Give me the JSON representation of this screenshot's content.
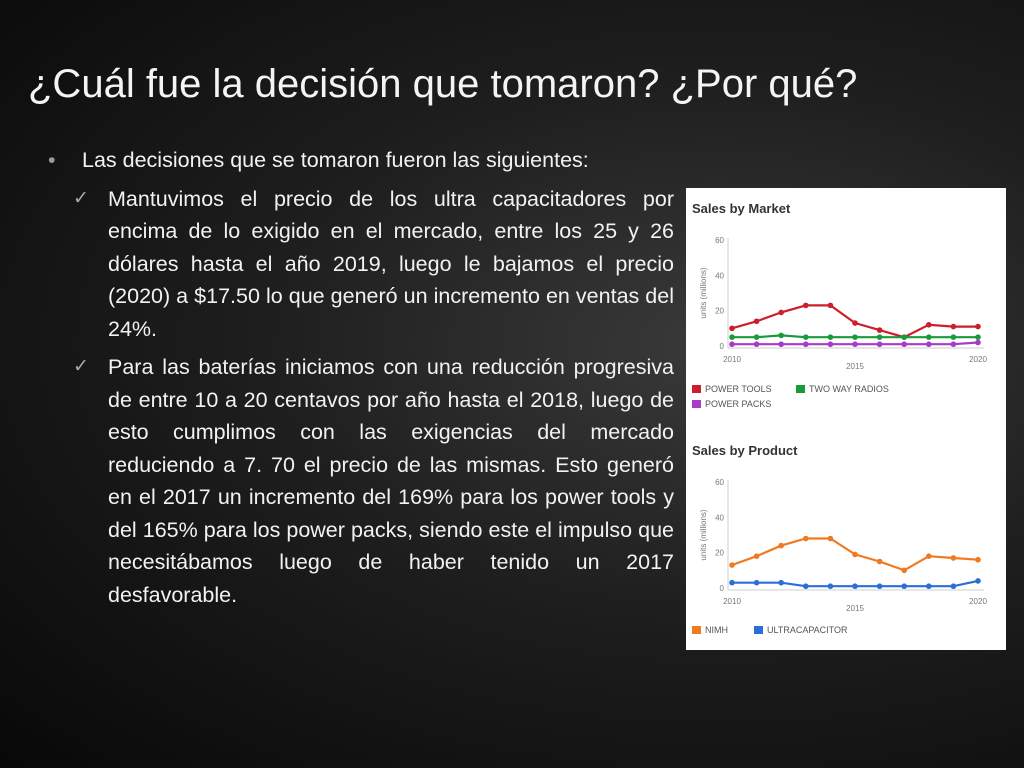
{
  "slide": {
    "title": "¿Cuál fue la decisión que tomaron? ¿Por qué?",
    "bullet": "Las decisiones que se tomaron fueron las siguientes:",
    "sub_bullets": [
      "Mantuvimos el precio de los ultra capacitadores por encima de lo exigido en el mercado, entre los 25 y 26 dólares hasta el año 2019, luego le bajamos el precio (2020) a $17.50 lo que generó un incremento en ventas del 24%.",
      "Para las baterías iniciamos con una reducción progresiva de entre 10 a 20 centavos por año hasta el 2018, luego de esto cumplimos con las exigencias del mercado reduciendo a 7. 70 el precio de las mismas. Esto generó en el 2017 un incremento del 169% para los power tools y del 165% para los power packs, siendo este el impulso que necesitábamos luego de haber tenido un 2017 desfavorable."
    ]
  },
  "chart_data": [
    {
      "type": "line",
      "title": "Sales by Market",
      "ylabel": "units (millions)",
      "x": [
        2010,
        2011,
        2012,
        2013,
        2014,
        2015,
        2016,
        2017,
        2018,
        2019,
        2020
      ],
      "x_tick_labels": [
        "2010",
        "2015",
        "2020"
      ],
      "y_ticks": [
        "0",
        "20",
        "40",
        "60"
      ],
      "ylim": [
        0,
        60
      ],
      "grid": false,
      "legend_position": "bottom",
      "series": [
        {
          "name": "POWER TOOLS",
          "color": "#cc1f2d",
          "values": [
            10,
            14,
            19,
            23,
            23,
            13,
            9,
            5,
            12,
            11,
            11
          ]
        },
        {
          "name": "TWO WAY RADIOS",
          "color": "#1a9a3a",
          "values": [
            5,
            5,
            6,
            5,
            5,
            5,
            5,
            5,
            5,
            5,
            5
          ]
        },
        {
          "name": "POWER PACKS",
          "color": "#a83cc8",
          "values": [
            1,
            1,
            1,
            1,
            1,
            1,
            1,
            1,
            1,
            1,
            2
          ]
        }
      ]
    },
    {
      "type": "line",
      "title": "Sales by Product",
      "ylabel": "units (millions)",
      "x": [
        2010,
        2011,
        2012,
        2013,
        2014,
        2015,
        2016,
        2017,
        2018,
        2019,
        2020
      ],
      "x_tick_labels": [
        "2010",
        "2015",
        "2020"
      ],
      "y_ticks": [
        "0",
        "20",
        "40",
        "60"
      ],
      "ylim": [
        0,
        60
      ],
      "grid": false,
      "legend_position": "bottom",
      "series": [
        {
          "name": "NIMH",
          "color": "#f07a22",
          "values": [
            13,
            18,
            24,
            28,
            28,
            19,
            15,
            10,
            18,
            17,
            16
          ]
        },
        {
          "name": "ULTRACAPACITOR",
          "color": "#2a6fd6",
          "values": [
            3,
            3,
            3,
            1,
            1,
            1,
            1,
            1,
            1,
            1,
            4
          ]
        }
      ]
    }
  ]
}
